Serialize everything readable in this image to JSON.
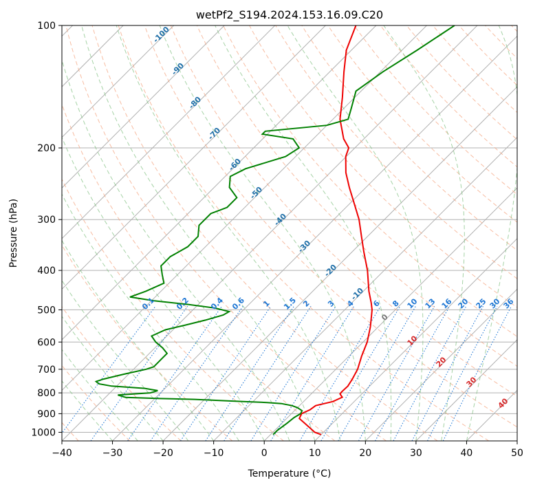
{
  "chart_data": {
    "type": "line",
    "title": "wetPf2_S194.2024.153.16.09.C20",
    "xlabel": "Temperature (°C)",
    "ylabel": "Pressure (hPa)",
    "xlim": [
      -40,
      50
    ],
    "ylim": [
      1050,
      100
    ],
    "y_scale": "log",
    "grid": true,
    "x_ticks": [
      -40,
      -30,
      -20,
      -10,
      0,
      10,
      20,
      30,
      40,
      50
    ],
    "y_ticks": [
      100,
      200,
      300,
      400,
      500,
      600,
      700,
      800,
      900,
      1000
    ],
    "colors": {
      "temperature": "#ee0000",
      "dewpoint": "#008000",
      "dry_adiabats": "#f4a582",
      "moist_adiabats": "#7fbf7f",
      "mixing_ratio": "#1f77d4",
      "isotherm_labels": "#1f6fa8",
      "hot_isotherm_labels": "#d62728"
    },
    "series": [
      {
        "key": "temperature",
        "values": [
          [
            1013,
            10
          ],
          [
            1000,
            8.3
          ],
          [
            950,
            4.5
          ],
          [
            925,
            2.5
          ],
          [
            900,
            2
          ],
          [
            880,
            2.9
          ],
          [
            860,
            3.2
          ],
          [
            850,
            4.5
          ],
          [
            840,
            5.8
          ],
          [
            820,
            6.8
          ],
          [
            805,
            5.7
          ],
          [
            795,
            5.6
          ],
          [
            770,
            5.7
          ],
          [
            740,
            5.2
          ],
          [
            700,
            4.3
          ],
          [
            650,
            2.5
          ],
          [
            600,
            0.8
          ],
          [
            550,
            -1.6
          ],
          [
            500,
            -4.6
          ],
          [
            480,
            -6.2
          ],
          [
            450,
            -8.9
          ],
          [
            400,
            -13.3
          ],
          [
            360,
            -17.7
          ],
          [
            330,
            -21.2
          ],
          [
            300,
            -25
          ],
          [
            270,
            -29.8
          ],
          [
            250,
            -33.3
          ],
          [
            230,
            -36.9
          ],
          [
            210,
            -40.1
          ],
          [
            200,
            -41.2
          ],
          [
            190,
            -44
          ],
          [
            170,
            -48.6
          ],
          [
            150,
            -52.5
          ],
          [
            130,
            -57.2
          ],
          [
            115,
            -61
          ],
          [
            100,
            -64
          ]
        ]
      },
      {
        "key": "dewpoint",
        "values": [
          [
            1013,
            0.5
          ],
          [
            990,
            0.5
          ],
          [
            950,
            1
          ],
          [
            920,
            1.3
          ],
          [
            900,
            1.8
          ],
          [
            885,
            1.5
          ],
          [
            870,
            0
          ],
          [
            860,
            -1.5
          ],
          [
            850,
            -4
          ],
          [
            845,
            -7
          ],
          [
            840,
            -12
          ],
          [
            830,
            -22
          ],
          [
            826,
            -29
          ],
          [
            821,
            -36
          ],
          [
            810,
            -38
          ],
          [
            800,
            -32
          ],
          [
            790,
            -31
          ],
          [
            780,
            -34
          ],
          [
            770,
            -41
          ],
          [
            760,
            -44
          ],
          [
            750,
            -45
          ],
          [
            740,
            -44
          ],
          [
            720,
            -41
          ],
          [
            700,
            -37.5
          ],
          [
            690,
            -36.5
          ],
          [
            660,
            -36.5
          ],
          [
            640,
            -36.5
          ],
          [
            620,
            -38.5
          ],
          [
            600,
            -41
          ],
          [
            580,
            -43
          ],
          [
            560,
            -41.5
          ],
          [
            545,
            -38.5
          ],
          [
            530,
            -35.5
          ],
          [
            515,
            -33
          ],
          [
            505,
            -32.5
          ],
          [
            495,
            -36
          ],
          [
            485,
            -42
          ],
          [
            475,
            -49.5
          ],
          [
            465,
            -55
          ],
          [
            450,
            -53
          ],
          [
            430,
            -51
          ],
          [
            410,
            -53
          ],
          [
            390,
            -55
          ],
          [
            370,
            -55
          ],
          [
            350,
            -53.5
          ],
          [
            330,
            -53.5
          ],
          [
            310,
            -55.5
          ],
          [
            290,
            -55.5
          ],
          [
            280,
            -53.5
          ],
          [
            265,
            -53.5
          ],
          [
            250,
            -57
          ],
          [
            235,
            -59
          ],
          [
            225,
            -57.5
          ],
          [
            210,
            -52
          ],
          [
            200,
            -51
          ],
          [
            190,
            -54
          ],
          [
            185,
            -61
          ],
          [
            182,
            -61
          ],
          [
            176,
            -50
          ],
          [
            170,
            -47
          ],
          [
            160,
            -48.5
          ],
          [
            145,
            -51
          ],
          [
            130,
            -49.5
          ],
          [
            115,
            -47
          ],
          [
            100,
            -44.5
          ]
        ]
      }
    ],
    "isotherm_labels": [
      "-100",
      "-90",
      "-80",
      "-70",
      "-60",
      "-50",
      "-40",
      "-30",
      "-20",
      "-10"
    ],
    "hot_isotherm_labels": [
      "0",
      "10",
      "20",
      "30",
      "40"
    ],
    "mixing_ratio_labels": [
      "0.1",
      "0.2",
      "0.4",
      "0.6",
      "1",
      "1.5",
      "2",
      "3",
      "4",
      "6",
      "8",
      "10",
      "13",
      "16",
      "20",
      "25",
      "30",
      "36"
    ]
  }
}
